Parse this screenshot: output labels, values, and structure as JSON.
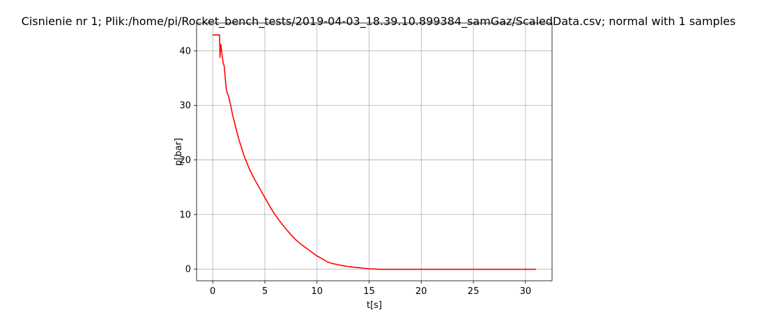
{
  "chart_data": {
    "type": "line",
    "title": "Cisnienie nr 1; Plik:/home/pi/Rocket_bench_tests/2019-04-03_18.39.10.899384_samGaz/ScaledData.csv; normal with 1 samples",
    "xlabel": "t[s]",
    "ylabel": "p[bar]",
    "xlim": [
      -1.55,
      32.55
    ],
    "ylim": [
      -2.15,
      45.1
    ],
    "xticks": [
      0,
      5,
      10,
      15,
      20,
      25,
      30
    ],
    "yticks": [
      0,
      10,
      20,
      30,
      40
    ],
    "grid": true,
    "series": [
      {
        "color": "#ff0000",
        "x": [
          0,
          0.3,
          0.55,
          0.6,
          0.65,
          0.7,
          0.75,
          0.8,
          0.9,
          1.0,
          1.1,
          1.2,
          1.3,
          1.4,
          1.5,
          1.7,
          1.9,
          2.2,
          2.5,
          3.0,
          3.5,
          4.0,
          4.5,
          5.0,
          5.5,
          6.0,
          6.5,
          7.0,
          7.5,
          8.0,
          8.5,
          9.0,
          9.5,
          10.0,
          10.5,
          11.0,
          11.5,
          12.0,
          12.5,
          13.0,
          13.5,
          14.0,
          14.5,
          15.0,
          15.5,
          16.0,
          18.0,
          20.0,
          22.0,
          24.0,
          26.0,
          28.0,
          30.0,
          31.0
        ],
        "y": [
          42.9,
          42.9,
          42.9,
          42.9,
          42.9,
          38.8,
          41.2,
          40.9,
          39.2,
          37.8,
          37.2,
          35.0,
          33.0,
          32.2,
          31.8,
          30.2,
          28.3,
          26.0,
          23.8,
          20.8,
          18.4,
          16.5,
          14.8,
          13.1,
          11.4,
          9.9,
          8.6,
          7.4,
          6.3,
          5.3,
          4.5,
          3.8,
          3.1,
          2.4,
          1.9,
          1.3,
          1.0,
          0.8,
          0.6,
          0.45,
          0.35,
          0.25,
          0.15,
          0.05,
          0.0,
          -0.05,
          -0.05,
          -0.05,
          -0.05,
          -0.05,
          -0.05,
          -0.05,
          -0.05,
          -0.05
        ]
      }
    ]
  }
}
